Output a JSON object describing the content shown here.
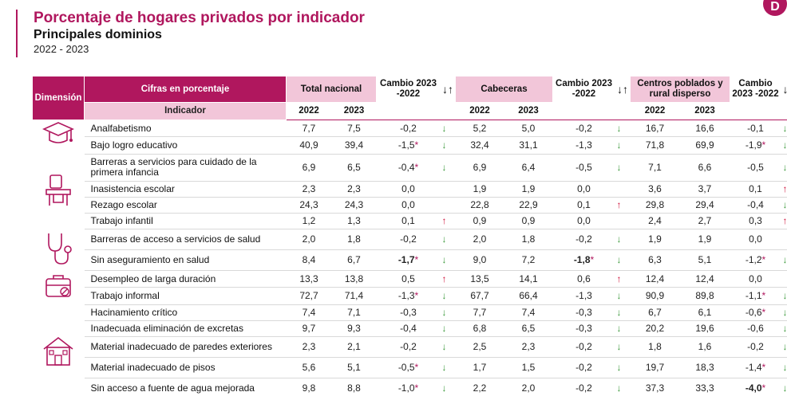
{
  "header": {
    "title": "Porcentaje de hogares privados por indicador",
    "subtitle": "Principales dominios",
    "years": "2022 - 2023",
    "logo_letter": "D"
  },
  "colors": {
    "accent": "#b0175e",
    "accent_light": "#f2c6d9",
    "down": "#3c9a3c",
    "up": "#d0103a"
  },
  "table": {
    "col_dimension": "Dimensión",
    "col_cifras": "Cifras en porcentaje",
    "col_indicador": "Indicador",
    "col_total": "Total  nacional",
    "col_cambio": "Cambio 2023 -2022",
    "col_cabeceras": "Cabeceras",
    "col_centros": "Centros poblados y rural disperso",
    "sort_icon": "↓↑",
    "year_a": "2022",
    "year_b": "2023",
    "rows": [
      {
        "name": "Analfabetismo",
        "icon": "graduation-cap-icon",
        "t22": "7,7",
        "t23": "7,5",
        "tc": "-0,2",
        "tcs": "",
        "tcb": false,
        "ta": "↓",
        "td": "dn",
        "c22": "5,2",
        "c23": "5,0",
        "cc": "-0,2",
        "ccs": "",
        "ccb": false,
        "ca": "↓",
        "cd": "dn",
        "r22": "16,7",
        "r23": "16,6",
        "rc": "-0,1",
        "rcs": "",
        "rcb": false,
        "ra": "↓",
        "rd": "dn"
      },
      {
        "name": "Bajo logro educativo",
        "t22": "40,9",
        "t23": "39,4",
        "tc": "-1,5",
        "tcs": "*",
        "tcb": false,
        "ta": "↓",
        "td": "dn",
        "c22": "32,4",
        "c23": "31,1",
        "cc": "-1,3",
        "ccs": "",
        "ccb": false,
        "ca": "↓",
        "cd": "dn",
        "r22": "71,8",
        "r23": "69,9",
        "rc": "-1,9",
        "rcs": "*",
        "rcb": false,
        "ra": "↓",
        "rd": "dn"
      },
      {
        "name": "Barreras a servicios para cuidado de la primera infancia",
        "icon": "school-desk-icon",
        "t22": "6,9",
        "t23": "6,5",
        "tc": "-0,4",
        "tcs": "*",
        "tcb": false,
        "ta": "↓",
        "td": "dn",
        "c22": "6,9",
        "c23": "6,4",
        "cc": "-0,5",
        "ccs": "",
        "ccb": false,
        "ca": "↓",
        "cd": "dn",
        "r22": "7,1",
        "r23": "6,6",
        "rc": "-0,5",
        "rcs": "",
        "rcb": false,
        "ra": "↓",
        "rd": "dn"
      },
      {
        "name": "Inasistencia escolar",
        "t22": "2,3",
        "t23": "2,3",
        "tc": "0,0",
        "tcs": "",
        "tcb": false,
        "ta": "",
        "td": "",
        "c22": "1,9",
        "c23": "1,9",
        "cc": "0,0",
        "ccs": "",
        "ccb": false,
        "ca": "",
        "cd": "",
        "r22": "3,6",
        "r23": "3,7",
        "rc": "0,1",
        "rcs": "",
        "rcb": false,
        "ra": "↑",
        "rd": "up"
      },
      {
        "name": "Rezago escolar",
        "t22": "24,3",
        "t23": "24,3",
        "tc": "0,0",
        "tcs": "",
        "tcb": false,
        "ta": "",
        "td": "",
        "c22": "22,8",
        "c23": "22,9",
        "cc": "0,1",
        "ccs": "",
        "ccb": false,
        "ca": "↑",
        "cd": "up",
        "r22": "29,8",
        "r23": "29,4",
        "rc": "-0,4",
        "rcs": "",
        "rcb": false,
        "ra": "↓",
        "rd": "dn"
      },
      {
        "name": "Trabajo infantil",
        "t22": "1,2",
        "t23": "1,3",
        "tc": "0,1",
        "tcs": "",
        "tcb": false,
        "ta": "↑",
        "td": "up",
        "c22": "0,9",
        "c23": "0,9",
        "cc": "0,0",
        "ccs": "",
        "ccb": false,
        "ca": "",
        "cd": "",
        "r22": "2,4",
        "r23": "2,7",
        "rc": "0,3",
        "rcs": "",
        "rcb": false,
        "ra": "↑",
        "rd": "up"
      },
      {
        "name": "Barreras de acceso a servicios de salud",
        "icon": "stethoscope-icon",
        "t22": "2,0",
        "t23": "1,8",
        "tc": "-0,2",
        "tcs": "",
        "tcb": false,
        "ta": "↓",
        "td": "dn",
        "c22": "2,0",
        "c23": "1,8",
        "cc": "-0,2",
        "ccs": "",
        "ccb": false,
        "ca": "↓",
        "cd": "dn",
        "r22": "1,9",
        "r23": "1,9",
        "rc": "0,0",
        "rcs": "",
        "rcb": false,
        "ra": "",
        "rd": ""
      },
      {
        "name": "Sin aseguramiento en salud",
        "t22": "8,4",
        "t23": "6,7",
        "tc": "-1,7",
        "tcs": "*",
        "tcb": true,
        "ta": "↓",
        "td": "dn",
        "c22": "9,0",
        "c23": "7,2",
        "cc": "-1,8",
        "ccs": "*",
        "ccb": true,
        "ca": "↓",
        "cd": "dn",
        "r22": "6,3",
        "r23": "5,1",
        "rc": "-1,2",
        "rcs": "*",
        "rcb": false,
        "ra": "↓",
        "rd": "dn"
      },
      {
        "name": "Desempleo de larga duración",
        "icon": "briefcase-icon",
        "t22": "13,3",
        "t23": "13,8",
        "tc": "0,5",
        "tcs": "",
        "tcb": false,
        "ta": "↑",
        "td": "up",
        "c22": "13,5",
        "c23": "14,1",
        "cc": "0,6",
        "ccs": "",
        "ccb": false,
        "ca": "↑",
        "cd": "up",
        "r22": "12,4",
        "r23": "12,4",
        "rc": "0,0",
        "rcs": "",
        "rcb": false,
        "ra": "",
        "rd": ""
      },
      {
        "name": "Trabajo informal",
        "t22": "72,7",
        "t23": "71,4",
        "tc": "-1,3",
        "tcs": "*",
        "tcb": false,
        "ta": "↓",
        "td": "dn",
        "c22": "67,7",
        "c23": "66,4",
        "cc": "-1,3",
        "ccs": "",
        "ccb": false,
        "ca": "↓",
        "cd": "dn",
        "r22": "90,9",
        "r23": "89,8",
        "rc": "-1,1",
        "rcs": "*",
        "rcb": false,
        "ra": "↓",
        "rd": "dn"
      },
      {
        "name": "Hacinamiento crítico",
        "icon": "house-icon",
        "t22": "7,4",
        "t23": "7,1",
        "tc": "-0,3",
        "tcs": "",
        "tcb": false,
        "ta": "↓",
        "td": "dn",
        "c22": "7,7",
        "c23": "7,4",
        "cc": "-0,3",
        "ccs": "",
        "ccb": false,
        "ca": "↓",
        "cd": "dn",
        "r22": "6,7",
        "r23": "6,1",
        "rc": "-0,6",
        "rcs": "*",
        "rcb": false,
        "ra": "↓",
        "rd": "dn"
      },
      {
        "name": "Inadecuada eliminación de excretas",
        "t22": "9,7",
        "t23": "9,3",
        "tc": "-0,4",
        "tcs": "",
        "tcb": false,
        "ta": "↓",
        "td": "dn",
        "c22": "6,8",
        "c23": "6,5",
        "cc": "-0,3",
        "ccs": "",
        "ccb": false,
        "ca": "↓",
        "cd": "dn",
        "r22": "20,2",
        "r23": "19,6",
        "rc": "-0,6",
        "rcs": "",
        "rcb": false,
        "ra": "↓",
        "rd": "dn"
      },
      {
        "name": "Material inadecuado de paredes exteriores",
        "t22": "2,3",
        "t23": "2,1",
        "tc": "-0,2",
        "tcs": "",
        "tcb": false,
        "ta": "↓",
        "td": "dn",
        "c22": "2,5",
        "c23": "2,3",
        "cc": "-0,2",
        "ccs": "",
        "ccb": false,
        "ca": "↓",
        "cd": "dn",
        "r22": "1,8",
        "r23": "1,6",
        "rc": "-0,2",
        "rcs": "",
        "rcb": false,
        "ra": "↓",
        "rd": "dn"
      },
      {
        "name": "Material inadecuado de pisos",
        "t22": "5,6",
        "t23": "5,1",
        "tc": "-0,5",
        "tcs": "*",
        "tcb": false,
        "ta": "↓",
        "td": "dn",
        "c22": "1,7",
        "c23": "1,5",
        "cc": "-0,2",
        "ccs": "",
        "ccb": false,
        "ca": "↓",
        "cd": "dn",
        "r22": "19,7",
        "r23": "18,3",
        "rc": "-1,4",
        "rcs": "*",
        "rcb": false,
        "ra": "↓",
        "rd": "dn"
      },
      {
        "name": "Sin acceso a fuente de agua mejorada",
        "t22": "9,8",
        "t23": "8,8",
        "tc": "-1,0",
        "tcs": "*",
        "tcb": false,
        "ta": "↓",
        "td": "dn",
        "c22": "2,2",
        "c23": "2,0",
        "cc": "-0,2",
        "ccs": "",
        "ccb": false,
        "ca": "↓",
        "cd": "dn",
        "r22": "37,3",
        "r23": "33,3",
        "rc": "-4,0",
        "rcs": "*",
        "rcb": true,
        "ra": "↓",
        "rd": "dn"
      }
    ]
  }
}
